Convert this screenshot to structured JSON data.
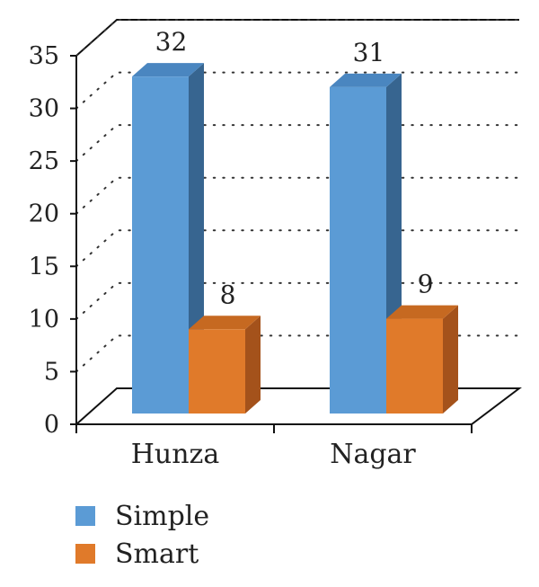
{
  "chart_data": {
    "type": "bar",
    "categories": [
      "Hunza",
      "Nagar"
    ],
    "series": [
      {
        "name": "Simple",
        "values": [
          32,
          31
        ],
        "color": "#5b9bd5",
        "top_color": "#4a86c0",
        "side_color": "#376590"
      },
      {
        "name": "Smart",
        "values": [
          8,
          9
        ],
        "color": "#e07a2a",
        "top_color": "#c66921",
        "side_color": "#a4521b"
      }
    ],
    "ylim": [
      0,
      35
    ],
    "yticks": [
      "0",
      "5",
      "10",
      "15",
      "20",
      "25",
      "30",
      "35"
    ],
    "data_labels": [
      [
        "32",
        "31"
      ],
      [
        "8",
        "9"
      ]
    ],
    "grid": "dotted",
    "legend": "bottom-left",
    "title": "",
    "xlabel": "",
    "ylabel": ""
  }
}
